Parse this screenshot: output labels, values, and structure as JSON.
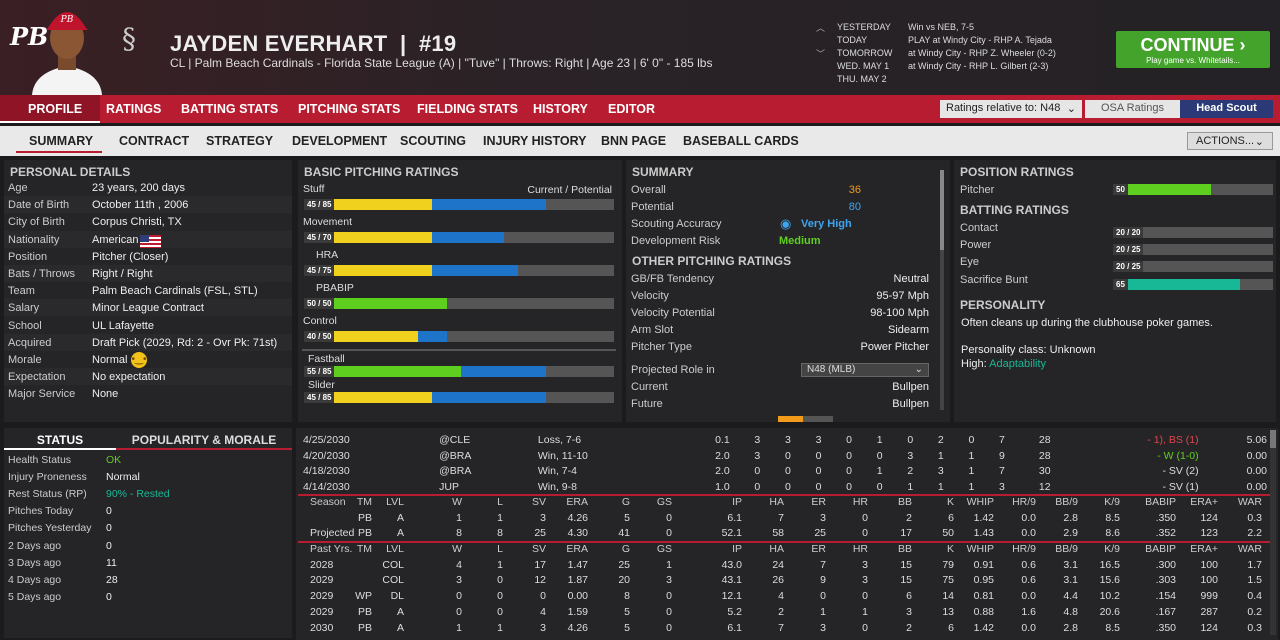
{
  "header": {
    "name": "JAYDEN EVERHART",
    "sep": "|",
    "number": "#19",
    "subtitle": "CL | Palm Beach Cardinals - Florida State League (A)  |  \"Tuve\" | Throws: Right  |  Age 23  |  6' 0\"  - 185 lbs",
    "logo": "PB"
  },
  "schedule": [
    {
      "day": "YESTERDAY",
      "info": "Win vs NEB, 7-5"
    },
    {
      "day": "TODAY",
      "info": "PLAY at Windy City - RHP A. Tejada"
    },
    {
      "day": "TOMORROW",
      "info": "at Windy City - RHP Z. Wheeler (0-2)"
    },
    {
      "day": "WED. MAY 1",
      "info": "at Windy City - RHP L. Gilbert (2-3)"
    },
    {
      "day": "THU. MAY 2",
      "info": ""
    }
  ],
  "continue": {
    "label": "CONTINUE",
    "sub": "Play game vs. Whitetails..."
  },
  "nav1": [
    "PROFILE",
    "RATINGS",
    "BATTING STATS",
    "PITCHING STATS",
    "FIELDING STATS",
    "HISTORY",
    "EDITOR"
  ],
  "ratings_rel": "Ratings relative to: N48",
  "osa": "OSA Ratings",
  "head_scout": "Head Scout",
  "nav2": [
    "SUMMARY",
    "CONTRACT",
    "STRATEGY",
    "DEVELOPMENT",
    "SCOUTING",
    "INJURY HISTORY",
    "BNN PAGE",
    "BASEBALL CARDS"
  ],
  "actions": "ACTIONS...",
  "personal": {
    "title": "PERSONAL DETAILS",
    "rows": [
      [
        "Age",
        "23 years, 200 days"
      ],
      [
        "Date of Birth",
        "October 11th , 2006"
      ],
      [
        "City of Birth",
        "Corpus Christi, TX"
      ],
      [
        "Nationality",
        "American"
      ],
      [
        "Position",
        "Pitcher (Closer)"
      ],
      [
        "Bats / Throws",
        "Right / Right"
      ],
      [
        "Team",
        "Palm Beach Cardinals (FSL, STL)"
      ],
      [
        "Salary",
        "Minor League Contract"
      ],
      [
        "School",
        "UL Lafayette"
      ],
      [
        "Acquired",
        "Draft Pick (2029, Rd: 2 - Ovr Pk: 71st)"
      ],
      [
        "Morale",
        "Normal"
      ],
      [
        "Expectation",
        "No expectation"
      ],
      [
        "Major Service",
        "None"
      ]
    ]
  },
  "status": {
    "tab1": "STATUS",
    "tab2": "POPULARITY & MORALE",
    "rows": [
      [
        "Health Status",
        "OK"
      ],
      [
        "Injury Proneness",
        "Normal"
      ],
      [
        "Rest Status (RP)",
        "90% - Rested"
      ],
      [
        "Pitches Today",
        "0"
      ],
      [
        "Pitches Yesterday",
        "0"
      ],
      [
        "2 Days ago",
        "0"
      ],
      [
        "3 Days ago",
        "11"
      ],
      [
        "4 Days ago",
        "28"
      ],
      [
        "5 Days ago",
        "0"
      ]
    ]
  },
  "pitching": {
    "title": "BASIC PITCHING RATINGS",
    "cp": "Current / Potential",
    "bars": [
      {
        "label": "Stuff",
        "text": "45 / 85",
        "cur": 45,
        "pot": 85,
        "color": "yellow"
      },
      {
        "label": "Movement",
        "text": "45 / 70",
        "cur": 45,
        "pot": 70,
        "color": "yellow"
      },
      {
        "label": "HRA",
        "text": "45 / 75",
        "cur": 45,
        "pot": 75,
        "color": "yellow"
      },
      {
        "label": "PBABIP",
        "text": "50 / 50",
        "cur": 50,
        "pot": 50,
        "color": "green"
      },
      {
        "label": "Control",
        "text": "40 / 50",
        "cur": 40,
        "pot": 50,
        "color": "yellow"
      },
      {
        "label": "Fastball",
        "text": "55 / 85",
        "cur": 55,
        "pot": 85,
        "color": "green"
      },
      {
        "label": "Slider",
        "text": "45 / 85",
        "cur": 45,
        "pot": 85,
        "color": "yellow"
      }
    ]
  },
  "summary": {
    "title": "SUMMARY",
    "overall_l": "Overall",
    "overall": "36",
    "potential_l": "Potential",
    "potential": "80",
    "acc_l": "Scouting Accuracy",
    "acc": "Very High",
    "risk_l": "Development Risk",
    "risk": "Medium",
    "other_title": "OTHER PITCHING RATINGS",
    "other": [
      [
        "GB/FB Tendency",
        "Neutral"
      ],
      [
        "Velocity",
        "95-97 Mph"
      ],
      [
        "Velocity Potential",
        "98-100 Mph"
      ],
      [
        "Arm Slot",
        "Sidearm"
      ],
      [
        "Pitcher Type",
        "Power Pitcher"
      ]
    ],
    "proj_l": "Projected Role in",
    "proj_sel": "N48 (MLB)",
    "current_l": "Current",
    "current": "Bullpen",
    "future_l": "Future",
    "future": "Bullpen"
  },
  "position": {
    "title": "POSITION RATINGS",
    "pitcher_l": "Pitcher",
    "pitcher": "50",
    "bat_title": "BATTING RATINGS",
    "bat": [
      [
        "Contact",
        "20 / 20",
        20,
        20
      ],
      [
        "Power",
        "20 / 25",
        20,
        25
      ],
      [
        "Eye",
        "20 / 25",
        20,
        25
      ],
      [
        "Sacrifice Bunt",
        "65",
        65,
        65
      ]
    ],
    "pers_title": "PERSONALITY",
    "pers_text": "Often cleans up during the clubhouse poker games.",
    "pers_class": "Personality class: Unknown",
    "high_l": "High:",
    "high": "Adaptability"
  },
  "games": [
    [
      "4/25/2030",
      "@CLE",
      "Loss, 7-6",
      "0.1",
      "3",
      "3",
      "3",
      "0",
      "1",
      "0",
      "2",
      "0",
      "7",
      "28",
      "- 1), BS (1)",
      "5.06"
    ],
    [
      "4/20/2030",
      "@BRA",
      "Win, 11-10",
      "2.0",
      "3",
      "0",
      "0",
      "0",
      "0",
      "3",
      "1",
      "1",
      "9",
      "28",
      "- W (1-0)",
      "0.00"
    ],
    [
      "4/18/2030",
      "@BRA",
      "Win, 7-4",
      "2.0",
      "0",
      "0",
      "0",
      "0",
      "1",
      "2",
      "3",
      "1",
      "7",
      "30",
      "- SV (2)",
      "0.00"
    ],
    [
      "4/14/2030",
      "JUP",
      "Win, 9-8",
      "1.0",
      "0",
      "0",
      "0",
      "0",
      "0",
      "1",
      "1",
      "1",
      "3",
      "12",
      "- SV (1)",
      "0.00"
    ]
  ],
  "season_hdr": [
    "Season",
    "TM",
    "LVL",
    "W",
    "L",
    "SV",
    "ERA",
    "G",
    "GS",
    "IP",
    "HA",
    "ER",
    "HR",
    "BB",
    "K",
    "WHIP",
    "HR/9",
    "BB/9",
    "K/9",
    "BABIP",
    "ERA+",
    "WAR"
  ],
  "season": [
    [
      "",
      "PB",
      "A",
      "1",
      "1",
      "3",
      "4.26",
      "5",
      "0",
      "6.1",
      "7",
      "3",
      "0",
      "2",
      "6",
      "1.42",
      "0.0",
      "2.8",
      "8.5",
      ".350",
      "124",
      "0.3"
    ],
    [
      "Projected",
      "PB",
      "A",
      "8",
      "8",
      "25",
      "4.30",
      "41",
      "0",
      "52.1",
      "58",
      "25",
      "0",
      "17",
      "50",
      "1.43",
      "0.0",
      "2.9",
      "8.6",
      ".352",
      "123",
      "2.2"
    ]
  ],
  "past_hdr": [
    "Past Yrs.",
    "TM",
    "LVL",
    "W",
    "L",
    "SV",
    "ERA",
    "G",
    "GS",
    "IP",
    "HA",
    "ER",
    "HR",
    "BB",
    "K",
    "WHIP",
    "HR/9",
    "BB/9",
    "K/9",
    "BABIP",
    "ERA+",
    "WAR"
  ],
  "past": [
    [
      "2028",
      "",
      "COL",
      "4",
      "1",
      "17",
      "1.47",
      "25",
      "1",
      "43.0",
      "24",
      "7",
      "3",
      "15",
      "79",
      "0.91",
      "0.6",
      "3.1",
      "16.5",
      ".300",
      "100",
      "1.7"
    ],
    [
      "2029",
      "",
      "COL",
      "3",
      "0",
      "12",
      "1.87",
      "20",
      "3",
      "43.1",
      "26",
      "9",
      "3",
      "15",
      "75",
      "0.95",
      "0.6",
      "3.1",
      "15.6",
      ".303",
      "100",
      "1.5"
    ],
    [
      "2029",
      "WP",
      "DL",
      "0",
      "0",
      "0",
      "0.00",
      "8",
      "0",
      "12.1",
      "4",
      "0",
      "0",
      "6",
      "14",
      "0.81",
      "0.0",
      "4.4",
      "10.2",
      ".154",
      "999",
      "0.4"
    ],
    [
      "2029",
      "PB",
      "A",
      "0",
      "0",
      "4",
      "1.59",
      "5",
      "0",
      "5.2",
      "2",
      "1",
      "1",
      "3",
      "13",
      "0.88",
      "1.6",
      "4.8",
      "20.6",
      ".167",
      "287",
      "0.2"
    ],
    [
      "2030",
      "PB",
      "A",
      "1",
      "1",
      "3",
      "4.26",
      "5",
      "0",
      "6.1",
      "7",
      "3",
      "0",
      "2",
      "6",
      "1.42",
      "0.0",
      "2.8",
      "8.5",
      ".350",
      "124",
      "0.3"
    ]
  ],
  "colors": {
    "accent": "#b81c30",
    "yellow": "#f0d21e",
    "green": "#5fcf1f",
    "blue": "#1e74c8",
    "teal": "#18b896"
  }
}
